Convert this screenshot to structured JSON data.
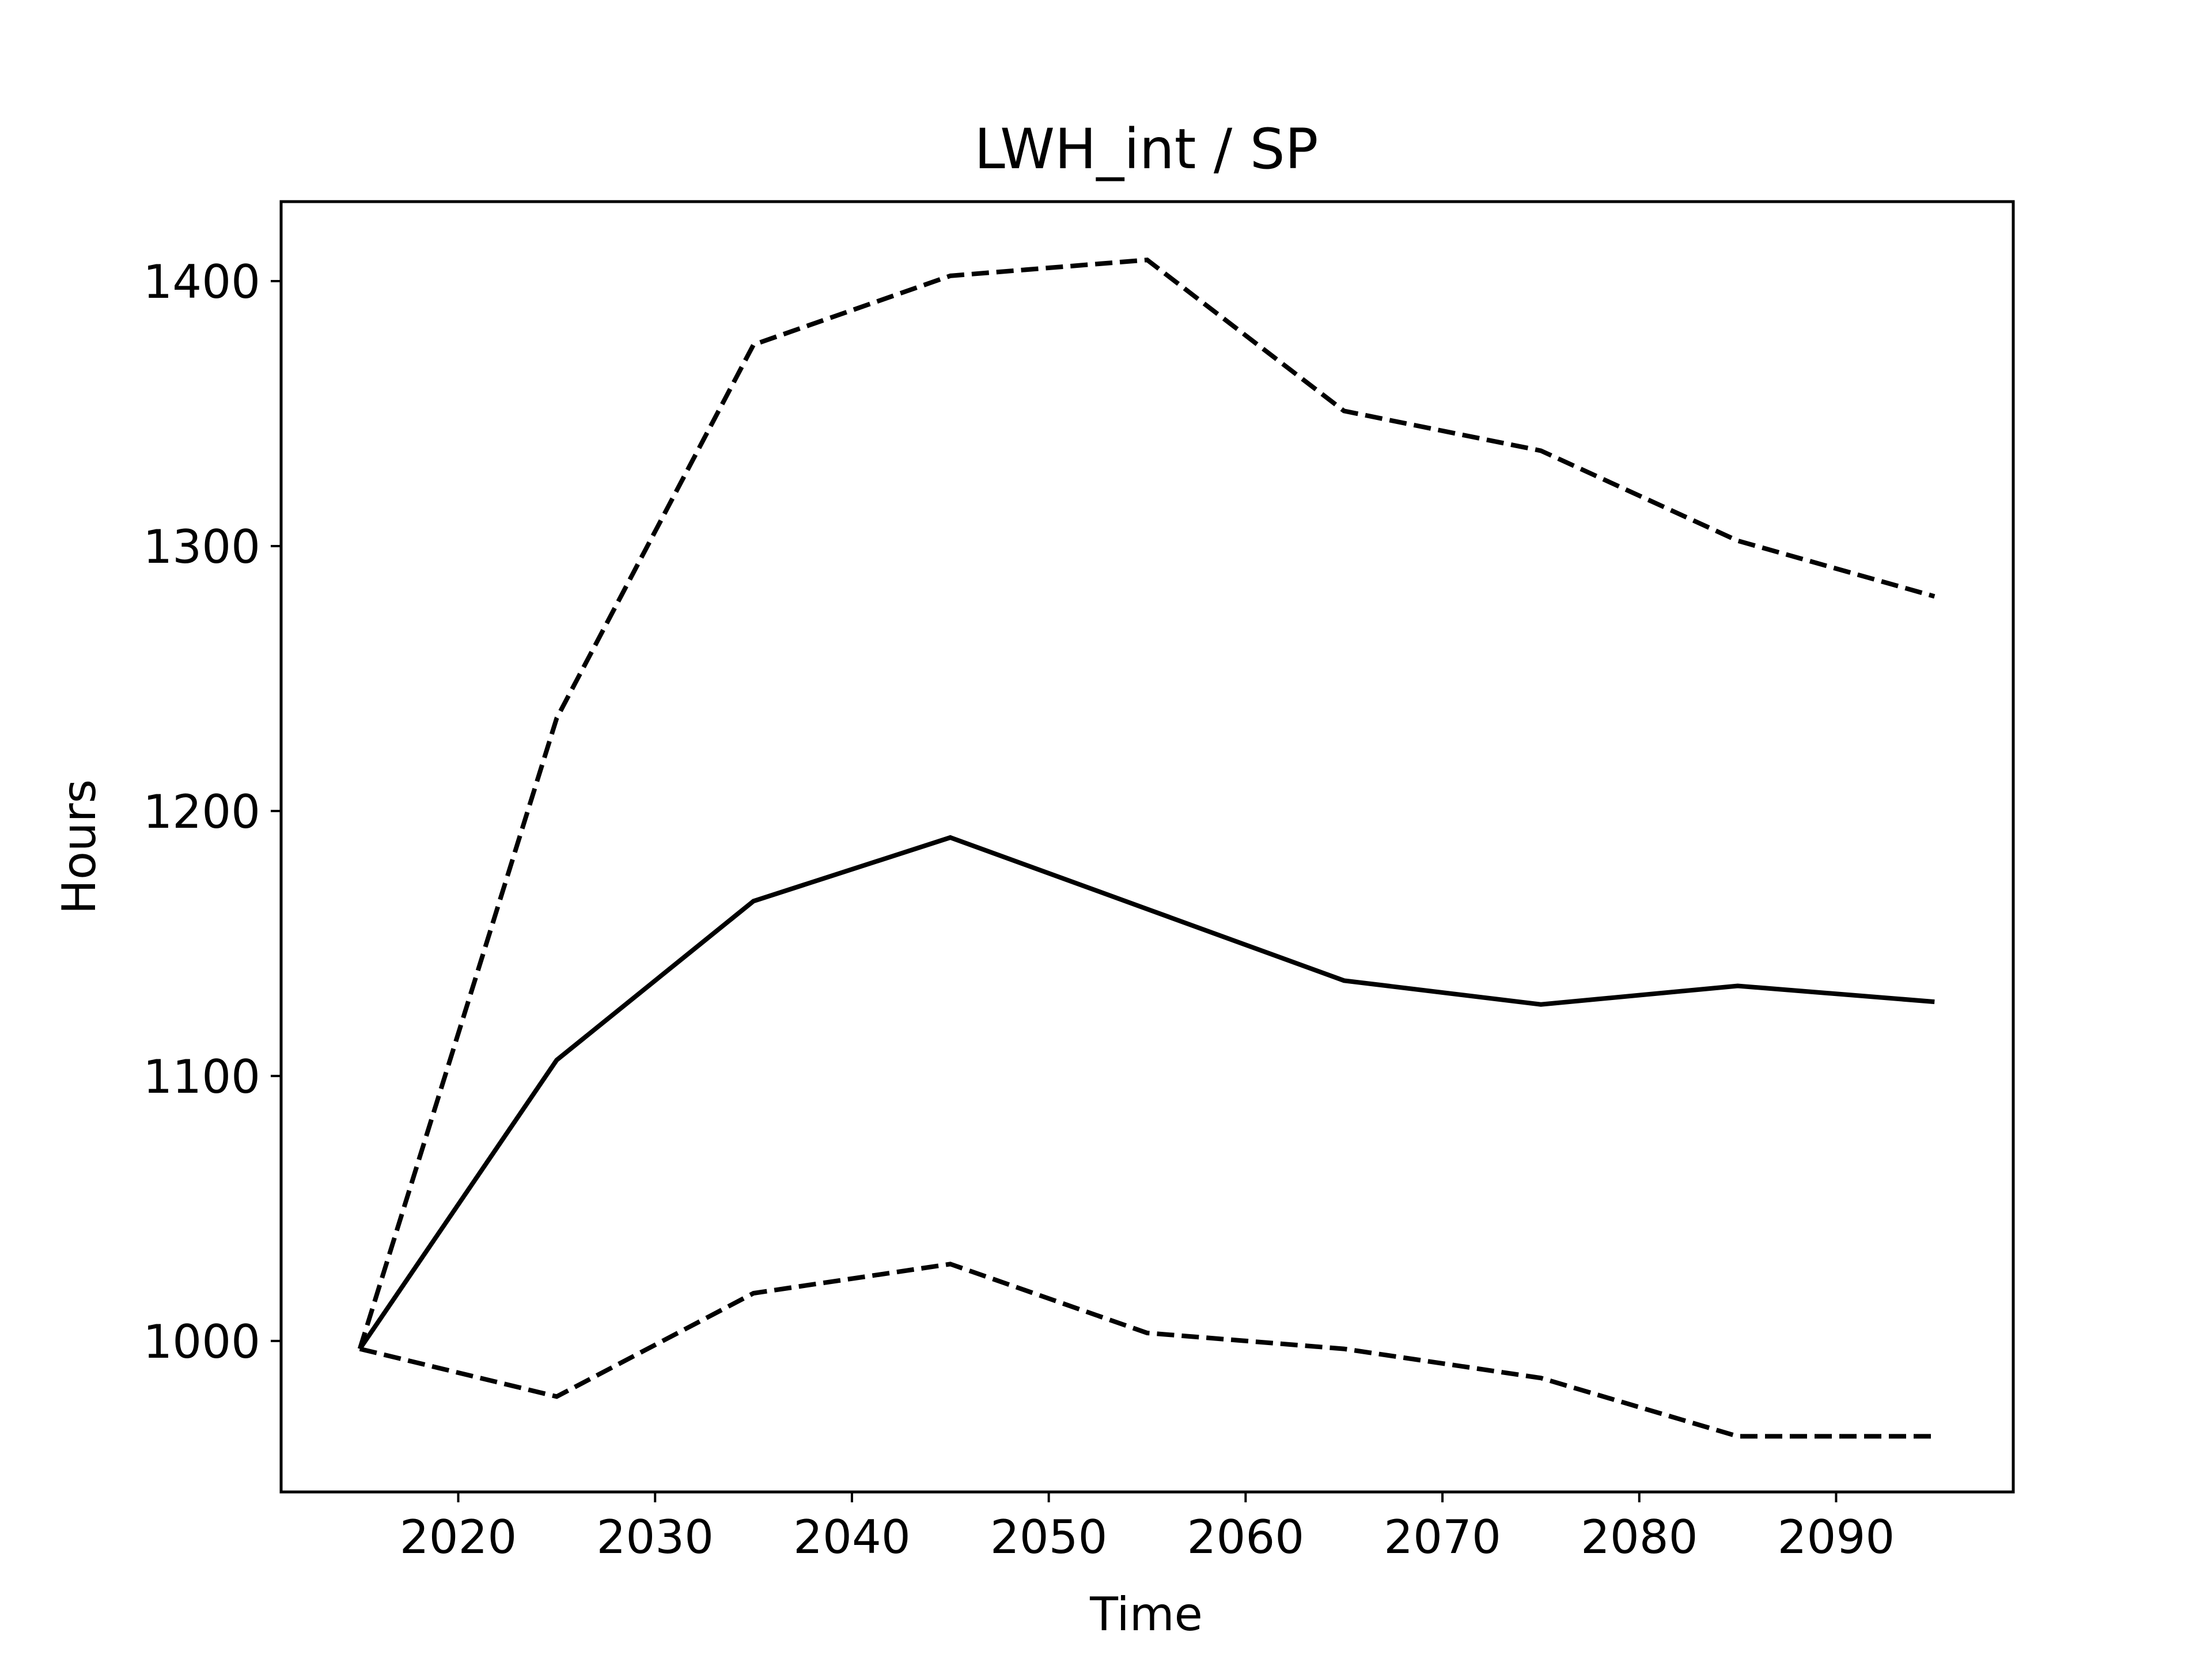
{
  "chart_data": {
    "type": "line",
    "title": "LWH_int / SP",
    "xlabel": "Time",
    "ylabel": "Hours",
    "x": [
      2015,
      2025,
      2035,
      2045,
      2055,
      2065,
      2075,
      2085,
      2095
    ],
    "series": [
      {
        "style": "solid",
        "color": "#000000",
        "values": [
          997,
          1106,
          1166,
          1190,
          1163,
          1136,
          1127,
          1134,
          1128
        ]
      },
      {
        "style": "dashed",
        "color": "#000000",
        "values": [
          997,
          1235,
          1376,
          1402,
          1408,
          1351,
          1336,
          1302,
          1281
        ]
      },
      {
        "style": "dashed",
        "color": "#000000",
        "values": [
          997,
          979,
          1018,
          1029,
          1003,
          997,
          986,
          964,
          964
        ]
      }
    ],
    "xlim": [
      2011,
      2099
    ],
    "ylim": [
      943,
      1430
    ],
    "xticks": [
      2020,
      2030,
      2040,
      2050,
      2060,
      2070,
      2080,
      2090
    ],
    "yticks": [
      1000,
      1100,
      1200,
      1300,
      1400
    ],
    "grid": false,
    "legend": "none"
  }
}
